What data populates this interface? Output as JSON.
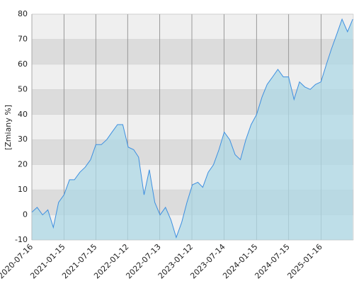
{
  "chart_data": {
    "type": "area",
    "y_label": "[Zmiany %]",
    "x": [
      "2020-07-15",
      "2020-08-15",
      "2020-09-15",
      "2020-10-15",
      "2020-11-15",
      "2020-12-15",
      "2021-01-15",
      "2021-02-15",
      "2021-03-15",
      "2021-04-15",
      "2021-05-15",
      "2021-06-15",
      "2021-07-15",
      "2021-08-15",
      "2021-09-15",
      "2021-10-15",
      "2021-11-15",
      "2021-12-15",
      "2022-01-15",
      "2022-02-15",
      "2022-03-15",
      "2022-04-15",
      "2022-05-15",
      "2022-06-15",
      "2022-07-15",
      "2022-08-15",
      "2022-09-15",
      "2022-10-15",
      "2022-11-15",
      "2022-12-15",
      "2023-01-15",
      "2023-02-15",
      "2023-03-15",
      "2023-04-15",
      "2023-05-15",
      "2023-06-15",
      "2023-07-15",
      "2023-08-15",
      "2023-09-15",
      "2023-10-15",
      "2023-11-15",
      "2023-12-15",
      "2024-01-15",
      "2024-02-15",
      "2024-03-15",
      "2024-04-15",
      "2024-05-15",
      "2024-06-15",
      "2024-07-15",
      "2024-08-15",
      "2024-09-15",
      "2024-10-15",
      "2024-11-15",
      "2024-12-15",
      "2025-01-15",
      "2025-02-15",
      "2025-03-15",
      "2025-04-15",
      "2025-05-15",
      "2025-06-15",
      "2025-07-15"
    ],
    "values": [
      1,
      3,
      0,
      2,
      -5,
      5,
      8,
      14,
      14,
      17,
      19,
      22,
      28,
      28,
      30,
      33,
      36,
      36,
      27,
      26,
      23,
      8,
      18,
      5,
      0,
      3,
      -2,
      -9,
      -3,
      5,
      12,
      13,
      11,
      17,
      20,
      26,
      33,
      30,
      24,
      22,
      30,
      36,
      40,
      47,
      52,
      55,
      58,
      55,
      55,
      46,
      53,
      51,
      50,
      52,
      53,
      60,
      66,
      72,
      78,
      73,
      78
    ],
    "line_color": "#3d8fe0",
    "fill_color": "#add8e6",
    "xlim": [
      "2020-07-16",
      "2025-07-18"
    ],
    "xticks": [
      "2020-07-16",
      "2021-01-15",
      "2021-07-15",
      "2022-01-12",
      "2022-07-13",
      "2023-01-12",
      "2023-07-14",
      "2024-01-15",
      "2024-07-15",
      "2025-01-16"
    ],
    "ylim": [
      -10,
      80
    ],
    "yticks": [
      -10,
      0,
      10,
      20,
      30,
      40,
      50,
      60,
      70,
      80
    ],
    "grid": true
  }
}
